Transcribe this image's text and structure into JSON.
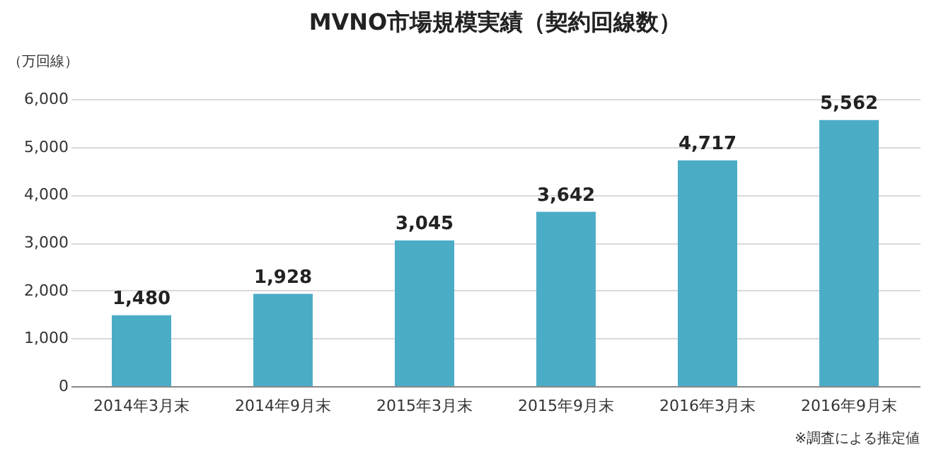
{
  "chart_data": {
    "type": "bar",
    "title": "MVNO市場規模実績（契約回線数）",
    "ylabel": "（万回線）",
    "categories": [
      "2014年3月末",
      "2014年9月末",
      "2015年3月末",
      "2015年9月末",
      "2016年3月末",
      "2016年9月末"
    ],
    "values": [
      1480,
      1928,
      3045,
      3642,
      4717,
      5562
    ],
    "value_labels": [
      "1,480",
      "1,928",
      "3,045",
      "3,642",
      "4,717",
      "5,562"
    ],
    "color": "#4bacc6",
    "ylim": [
      0,
      6000
    ],
    "yticks": [
      0,
      {
        "value": 1000,
        "label": "1,000"
      },
      {
        "value": 2000,
        "label": "2,000"
      },
      {
        "value": 3000,
        "label": "3,000"
      },
      {
        "value": 4000,
        "label": "4,000"
      },
      {
        "value": 5000,
        "label": "5,000"
      },
      {
        "value": 6000,
        "label": "6,000"
      }
    ],
    "grid": "y",
    "annotations": [
      "※調査による推定値"
    ]
  }
}
